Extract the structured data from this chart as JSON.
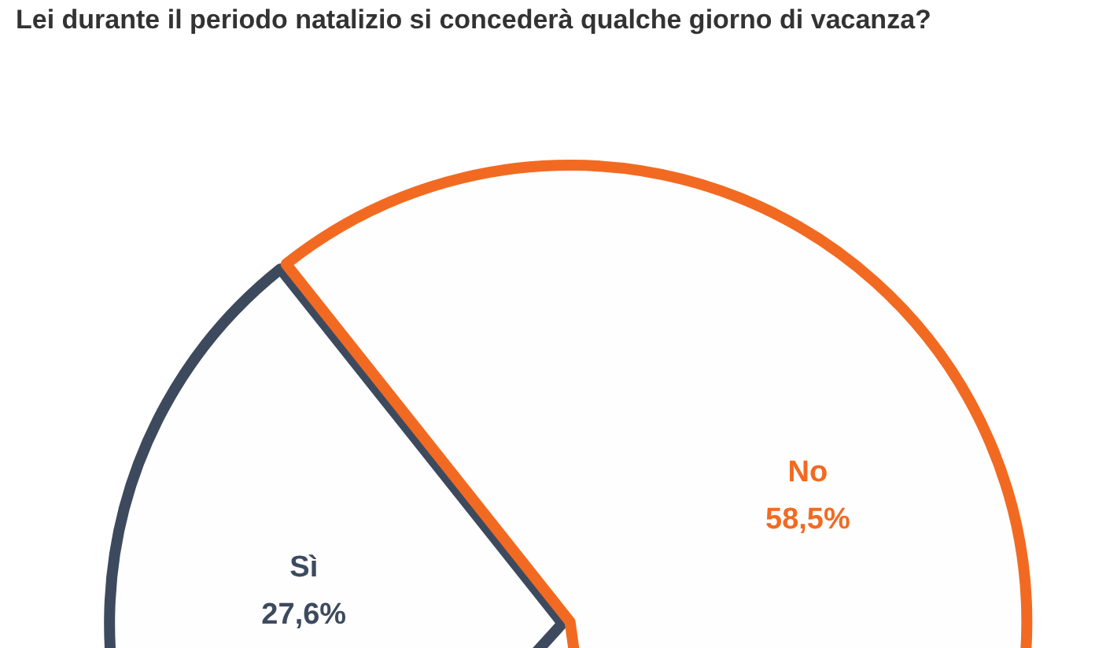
{
  "chart_data": {
    "type": "pie",
    "title": "Lei durante il periodo natalizio si concederà qualche giorno di vacanza?",
    "categories": [
      "Sì",
      "No"
    ],
    "values": [
      27.6,
      58.5
    ],
    "value_labels": [
      "27,6%",
      "58,5%"
    ],
    "colors": [
      "#3d4a5e",
      "#f26a21"
    ],
    "legend": false
  }
}
